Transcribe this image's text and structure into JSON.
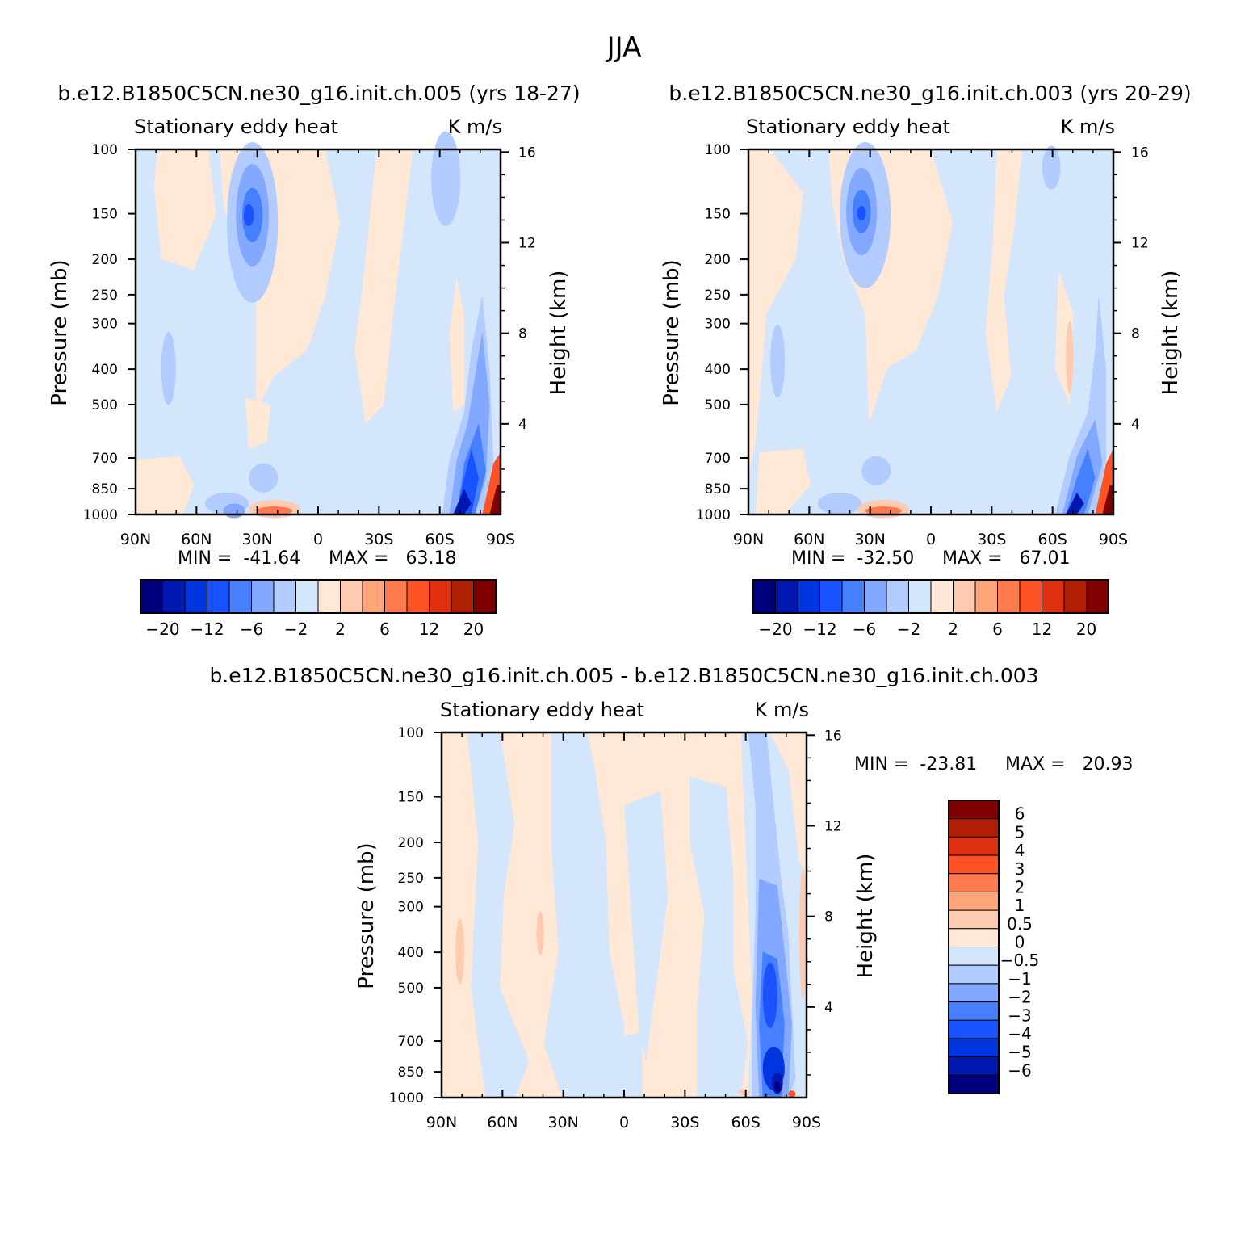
{
  "figure_title": "JJA",
  "chart_data": [
    {
      "type": "heatmap",
      "title": "b.e12.B1850C5CN.ne30_g16.init.ch.005 (yrs 18-27)",
      "variable": "Stationary eddy heat",
      "units": "K m/s",
      "xlabel": "",
      "ylabel": "Pressure (mb)",
      "y2label": "Height (km)",
      "xticks": [
        "90N",
        "60N",
        "30N",
        "0",
        "30S",
        "60S",
        "90S"
      ],
      "xlim": [
        90,
        -90
      ],
      "yticks": [
        100,
        150,
        200,
        250,
        300,
        400,
        500,
        700,
        850,
        1000
      ],
      "ylim": [
        1000,
        100
      ],
      "y2ticks": [
        4,
        8,
        12,
        16
      ],
      "min_label": "MIN =  -41.64",
      "max_label": "MAX =   63.18",
      "min": -41.64,
      "max": 63.18,
      "colorbar_labels": [
        "-20",
        "-12",
        "-6",
        "-2",
        "2",
        "6",
        "12",
        "20"
      ]
    },
    {
      "type": "heatmap",
      "title": "b.e12.B1850C5CN.ne30_g16.init.ch.003 (yrs 20-29)",
      "variable": "Stationary eddy heat",
      "units": "K m/s",
      "xlabel": "",
      "ylabel": "Pressure (mb)",
      "y2label": "Height (km)",
      "xticks": [
        "90N",
        "60N",
        "30N",
        "0",
        "30S",
        "60S",
        "90S"
      ],
      "xlim": [
        90,
        -90
      ],
      "yticks": [
        100,
        150,
        200,
        250,
        300,
        400,
        500,
        700,
        850,
        1000
      ],
      "ylim": [
        1000,
        100
      ],
      "y2ticks": [
        4,
        8,
        12,
        16
      ],
      "min_label": "MIN =  -32.50",
      "max_label": "MAX =   67.01",
      "min": -32.5,
      "max": 67.01,
      "colorbar_labels": [
        "-20",
        "-12",
        "-6",
        "-2",
        "2",
        "6",
        "12",
        "20"
      ]
    },
    {
      "type": "heatmap",
      "title": "b.e12.B1850C5CN.ne30_g16.init.ch.005 - b.e12.B1850C5CN.ne30_g16.init.ch.003",
      "variable": "Stationary eddy heat",
      "units": "K m/s",
      "xlabel": "",
      "ylabel": "Pressure (mb)",
      "y2label": "Height (km)",
      "xticks": [
        "90N",
        "60N",
        "30N",
        "0",
        "30S",
        "60S",
        "90S"
      ],
      "xlim": [
        90,
        -90
      ],
      "yticks": [
        100,
        150,
        200,
        250,
        300,
        400,
        500,
        700,
        850,
        1000
      ],
      "ylim": [
        1000,
        100
      ],
      "y2ticks": [
        4,
        8,
        12,
        16
      ],
      "min_label": "MIN =  -23.81",
      "max_label": "MAX =   20.93",
      "min": -23.81,
      "max": 20.93,
      "colorbar_labels": [
        "6",
        "5",
        "4",
        "3",
        "2",
        "1",
        "0.5",
        "0",
        "-0.5",
        "-1",
        "-2",
        "-3",
        "-4",
        "-5",
        "-6"
      ]
    }
  ],
  "colors": {
    "levels_16": [
      "#00007f",
      "#0018b0",
      "#0036e0",
      "#1a52ff",
      "#4680ff",
      "#82a8ff",
      "#b2ccff",
      "#d4e6fb",
      "#ffe8d6",
      "#ffcbb0",
      "#ffa57a",
      "#ff7a4f",
      "#ff5325",
      "#e03010",
      "#b01e05",
      "#7f0000"
    ]
  }
}
